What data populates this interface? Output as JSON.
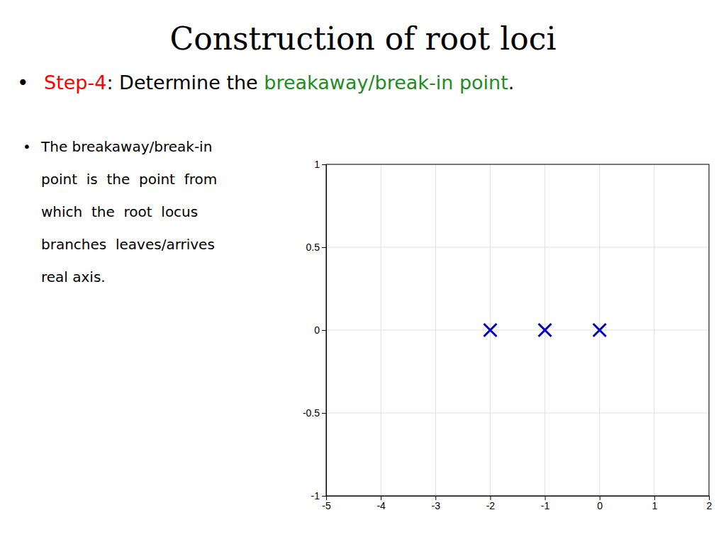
{
  "chart_data": {
    "type": "scatter",
    "title": "Construction of root loci",
    "annotations": [
      {
        "bullet": "•",
        "parts": [
          {
            "text": "Step-4",
            "color": "#FF0000"
          },
          {
            "text": ": Determine the "
          },
          {
            "text": "breakaway/break-in point",
            "color": "#228B22"
          },
          {
            "text": "."
          }
        ]
      },
      {
        "bullet": "•",
        "lines": [
          "The breakaway/break-in",
          "point  is  the  point  from",
          "which  the  root  locus",
          "branches  leaves/arrives",
          "real axis."
        ]
      }
    ],
    "x": [
      -2,
      -1,
      0
    ],
    "values": [
      0,
      0,
      0
    ],
    "color": "#0000CD",
    "marker": "x",
    "xlim": [
      -5,
      2
    ],
    "ylim": [
      -1,
      1
    ],
    "xticks": [
      -5,
      -4,
      -3,
      -2,
      -1,
      0,
      1,
      2
    ],
    "yticks": [
      -1,
      -0.5,
      0,
      0.5,
      1
    ],
    "grid": true
  }
}
